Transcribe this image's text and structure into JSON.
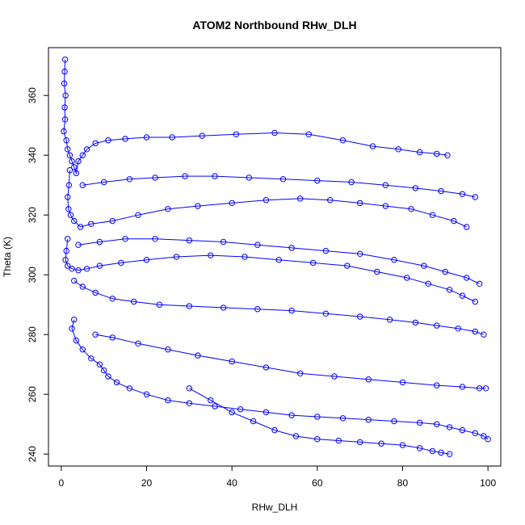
{
  "chart_data": {
    "type": "scatter",
    "title": "ATOM2 Northbound RHw_DLH",
    "xlabel": "RHw_DLH",
    "ylabel": "Theta (K)",
    "xlim": [
      -3,
      103
    ],
    "ylim": [
      236,
      376
    ],
    "xticks": [
      0,
      20,
      40,
      60,
      80,
      100
    ],
    "yticks": [
      240,
      260,
      280,
      300,
      320,
      340,
      360
    ],
    "point_color": "#0000ff",
    "line_color": "#0000ff",
    "marker": "open-circle",
    "grid": false,
    "legend": "none",
    "series": [
      {
        "x": [
          0.9,
          0.8,
          0.7,
          1.0,
          0.8,
          0.9,
          0.6,
          1.2,
          1.5,
          2.0,
          2.5,
          3.0,
          3.5,
          4.0,
          5.0,
          6.0,
          8.0,
          11.0,
          15.0,
          20.0,
          26.0,
          33.0,
          41.0,
          50.0,
          58.0,
          66.0,
          73.0,
          79.0,
          84.0,
          88.0,
          90.5
        ],
        "y": [
          372.0,
          368.0,
          364.0,
          360.0,
          356.0,
          352.0,
          348.0,
          345.0,
          342.0,
          340.0,
          338.0,
          336.0,
          334.0,
          338.0,
          340.0,
          342.0,
          344.0,
          345.0,
          345.5,
          346.0,
          346.0,
          346.5,
          347.0,
          347.5,
          347.0,
          345.0,
          343.0,
          342.0,
          341.0,
          340.5,
          340.0
        ]
      },
      {
        "x": [
          2.0,
          1.8,
          1.5,
          1.7,
          2.2,
          3.0,
          4.5,
          7.0,
          12.0,
          18.0,
          25.0,
          32.0,
          40.0,
          48.0,
          56.0,
          63.0,
          70.0,
          76.0,
          82.0,
          87.0,
          92.0,
          95.0
        ],
        "y": [
          335.0,
          330.0,
          326.0,
          322.0,
          320.0,
          318.0,
          316.0,
          317.0,
          318.0,
          320.0,
          322.0,
          323.0,
          324.0,
          325.0,
          325.5,
          325.0,
          324.0,
          323.0,
          322.0,
          320.0,
          318.0,
          316.0
        ]
      },
      {
        "x": [
          1.5,
          1.2,
          1.0,
          1.5,
          2.5,
          4.0,
          6.0,
          9.0,
          14.0,
          20.0,
          27.0,
          35.0,
          43.0,
          51.0,
          59.0,
          67.0,
          74.0,
          81.0,
          86.0,
          91.0,
          94.0,
          97.0
        ],
        "y": [
          312.0,
          308.0,
          305.0,
          303.0,
          302.0,
          301.5,
          302.0,
          303.0,
          304.0,
          305.0,
          306.0,
          306.5,
          306.0,
          305.0,
          304.0,
          303.0,
          301.0,
          299.0,
          297.0,
          295.0,
          293.0,
          291.0
        ]
      },
      {
        "x": [
          3.0,
          5.0,
          8.0,
          12.0,
          17.0,
          23.0,
          30.0,
          38.0,
          46.0,
          54.0,
          62.0,
          70.0,
          77.0,
          83.0,
          88.0,
          93.0,
          97.0,
          99.0
        ],
        "y": [
          298.0,
          296.0,
          294.0,
          292.0,
          291.0,
          290.0,
          289.5,
          289.0,
          288.5,
          288.0,
          287.0,
          286.0,
          285.0,
          284.0,
          283.0,
          282.0,
          281.0,
          280.0
        ]
      },
      {
        "x": [
          3.0,
          2.5,
          3.5,
          5.0,
          7.0,
          9.0,
          10.0,
          11.0,
          13.0,
          16.0,
          20.0,
          25.0,
          30.0,
          36.0,
          42.0,
          48.0,
          54.0,
          60.0,
          66.0,
          72.0,
          78.0,
          84.0,
          88.0,
          91.0,
          94.0,
          97.0,
          99.0,
          100.0
        ],
        "y": [
          285.0,
          282.0,
          278.0,
          275.0,
          272.0,
          270.0,
          268.0,
          266.0,
          264.0,
          262.0,
          260.0,
          258.0,
          257.0,
          256.0,
          255.0,
          254.0,
          253.0,
          252.5,
          252.0,
          251.5,
          251.0,
          250.5,
          250.0,
          249.0,
          248.0,
          247.0,
          246.0,
          245.0
        ]
      },
      {
        "x": [
          8.0,
          12.0,
          18.0,
          25.0,
          32.0,
          40.0,
          48.0,
          56.0,
          64.0,
          72.0,
          80.0,
          88.0,
          94.0,
          98.0,
          99.5
        ],
        "y": [
          280.0,
          279.0,
          277.0,
          275.0,
          273.0,
          271.0,
          269.0,
          267.0,
          266.0,
          265.0,
          264.0,
          263.0,
          262.5,
          262.0,
          262.0
        ]
      },
      {
        "x": [
          30.0,
          35.0,
          40.0,
          45.0,
          50.0,
          55.0,
          60.0,
          65.0,
          70.0,
          75.0,
          80.0,
          84.0,
          87.0,
          89.0,
          91.0
        ],
        "y": [
          262.0,
          258.0,
          254.0,
          251.0,
          248.0,
          246.0,
          245.0,
          244.5,
          244.0,
          243.5,
          243.0,
          242.0,
          241.0,
          240.5,
          240.0
        ]
      },
      {
        "x": [
          5.0,
          10.0,
          16.0,
          22.0,
          29.0,
          36.0,
          44.0,
          52.0,
          60.0,
          68.0,
          76.0,
          83.0,
          89.0,
          94.0,
          97.0
        ],
        "y": [
          330.0,
          331.0,
          332.0,
          332.5,
          333.0,
          333.0,
          332.5,
          332.0,
          331.5,
          331.0,
          330.0,
          329.0,
          328.0,
          327.0,
          326.0
        ]
      },
      {
        "x": [
          4.0,
          9.0,
          15.0,
          22.0,
          30.0,
          38.0,
          46.0,
          54.0,
          62.0,
          70.0,
          78.0,
          85.0,
          90.0,
          95.0,
          98.0
        ],
        "y": [
          310.0,
          311.0,
          312.0,
          312.0,
          311.5,
          311.0,
          310.0,
          309.0,
          308.0,
          307.0,
          305.0,
          303.0,
          301.0,
          299.0,
          297.0
        ]
      }
    ]
  }
}
